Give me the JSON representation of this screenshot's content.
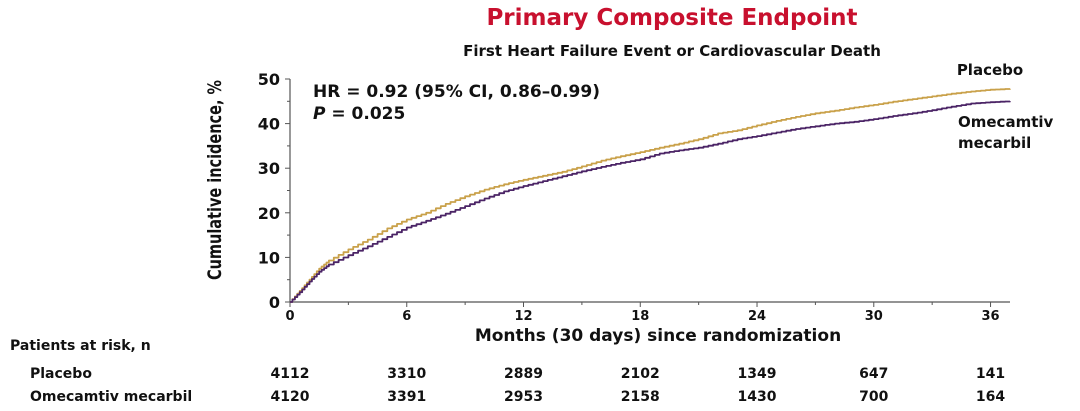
{
  "chart_data": {
    "type": "line",
    "title": "Primary Composite Endpoint",
    "subtitle": "First Heart Failure Event or Cardiovascular Death",
    "xlabel": "Months (30 days) since randomization",
    "ylabel": "Cumulative incidence, %",
    "xlim": [
      0,
      37
    ],
    "ylim": [
      0,
      50
    ],
    "xticks": [
      0,
      6,
      12,
      18,
      24,
      30,
      36
    ],
    "yticks": [
      0,
      10,
      20,
      30,
      40,
      50
    ],
    "annotation_hr": "HR = 0.92 (95% CI, 0.86–0.99)",
    "annotation_p_symbol": "P",
    "annotation_p_value": " = 0.025",
    "series": [
      {
        "name": "Placebo",
        "color": "#c9a14a",
        "points": [
          [
            0,
            0
          ],
          [
            0.5,
            2.5
          ],
          [
            1,
            5
          ],
          [
            1.5,
            7.5
          ],
          [
            2,
            9.3
          ],
          [
            3,
            11.8
          ],
          [
            4,
            14
          ],
          [
            5,
            16.5
          ],
          [
            6,
            18.5
          ],
          [
            7,
            20
          ],
          [
            8,
            22
          ],
          [
            9,
            23.7
          ],
          [
            10,
            25.2
          ],
          [
            11,
            26.4
          ],
          [
            12,
            27.4
          ],
          [
            13,
            28.3
          ],
          [
            14,
            29.2
          ],
          [
            15,
            30.4
          ],
          [
            16,
            31.7
          ],
          [
            17,
            32.7
          ],
          [
            18,
            33.6
          ],
          [
            19,
            34.6
          ],
          [
            20,
            35.5
          ],
          [
            21,
            36.5
          ],
          [
            22,
            37.8
          ],
          [
            23,
            38.5
          ],
          [
            24,
            39.6
          ],
          [
            25,
            40.6
          ],
          [
            26,
            41.5
          ],
          [
            27,
            42.3
          ],
          [
            28,
            42.9
          ],
          [
            29,
            43.6
          ],
          [
            30,
            44.2
          ],
          [
            31,
            44.9
          ],
          [
            32,
            45.5
          ],
          [
            33,
            46.1
          ],
          [
            34,
            46.7
          ],
          [
            35,
            47.2
          ],
          [
            36,
            47.6
          ],
          [
            37,
            47.8
          ]
        ]
      },
      {
        "name": "Omecamtiv mecarbil",
        "color": "#4b2466",
        "points": [
          [
            0,
            0
          ],
          [
            0.5,
            2.2
          ],
          [
            1,
            4.6
          ],
          [
            1.5,
            6.8
          ],
          [
            2,
            8.4
          ],
          [
            3,
            10.5
          ],
          [
            4,
            12.5
          ],
          [
            5,
            14.6
          ],
          [
            6,
            16.7
          ],
          [
            7,
            18.2
          ],
          [
            8,
            19.8
          ],
          [
            9,
            21.5
          ],
          [
            10,
            23.2
          ],
          [
            11,
            24.8
          ],
          [
            12,
            26
          ],
          [
            13,
            27.1
          ],
          [
            14,
            28.2
          ],
          [
            15,
            29.3
          ],
          [
            16,
            30.3
          ],
          [
            17,
            31.2
          ],
          [
            18,
            32
          ],
          [
            19,
            33.3
          ],
          [
            20,
            34
          ],
          [
            21,
            34.6
          ],
          [
            22,
            35.5
          ],
          [
            23,
            36.5
          ],
          [
            24,
            37.2
          ],
          [
            25,
            38
          ],
          [
            26,
            38.8
          ],
          [
            27,
            39.4
          ],
          [
            28,
            40
          ],
          [
            29,
            40.4
          ],
          [
            30,
            41
          ],
          [
            31,
            41.7
          ],
          [
            32,
            42.3
          ],
          [
            33,
            43
          ],
          [
            34,
            43.8
          ],
          [
            35,
            44.5
          ],
          [
            36,
            44.8
          ],
          [
            37,
            45
          ]
        ]
      }
    ],
    "legend_labels": {
      "placebo": "Placebo",
      "omecamtiv_line1": "Omecamtiv",
      "omecamtiv_line2": "mecarbil"
    }
  },
  "risk_table": {
    "header": "Patients at risk, n",
    "rows": [
      {
        "label": "Placebo",
        "values": [
          "4112",
          "3310",
          "2889",
          "2102",
          "1349",
          "647",
          "141"
        ]
      },
      {
        "label": "Omecamtiv mecarbil",
        "values": [
          "4120",
          "3391",
          "2953",
          "2158",
          "1430",
          "700",
          "164"
        ]
      }
    ]
  }
}
